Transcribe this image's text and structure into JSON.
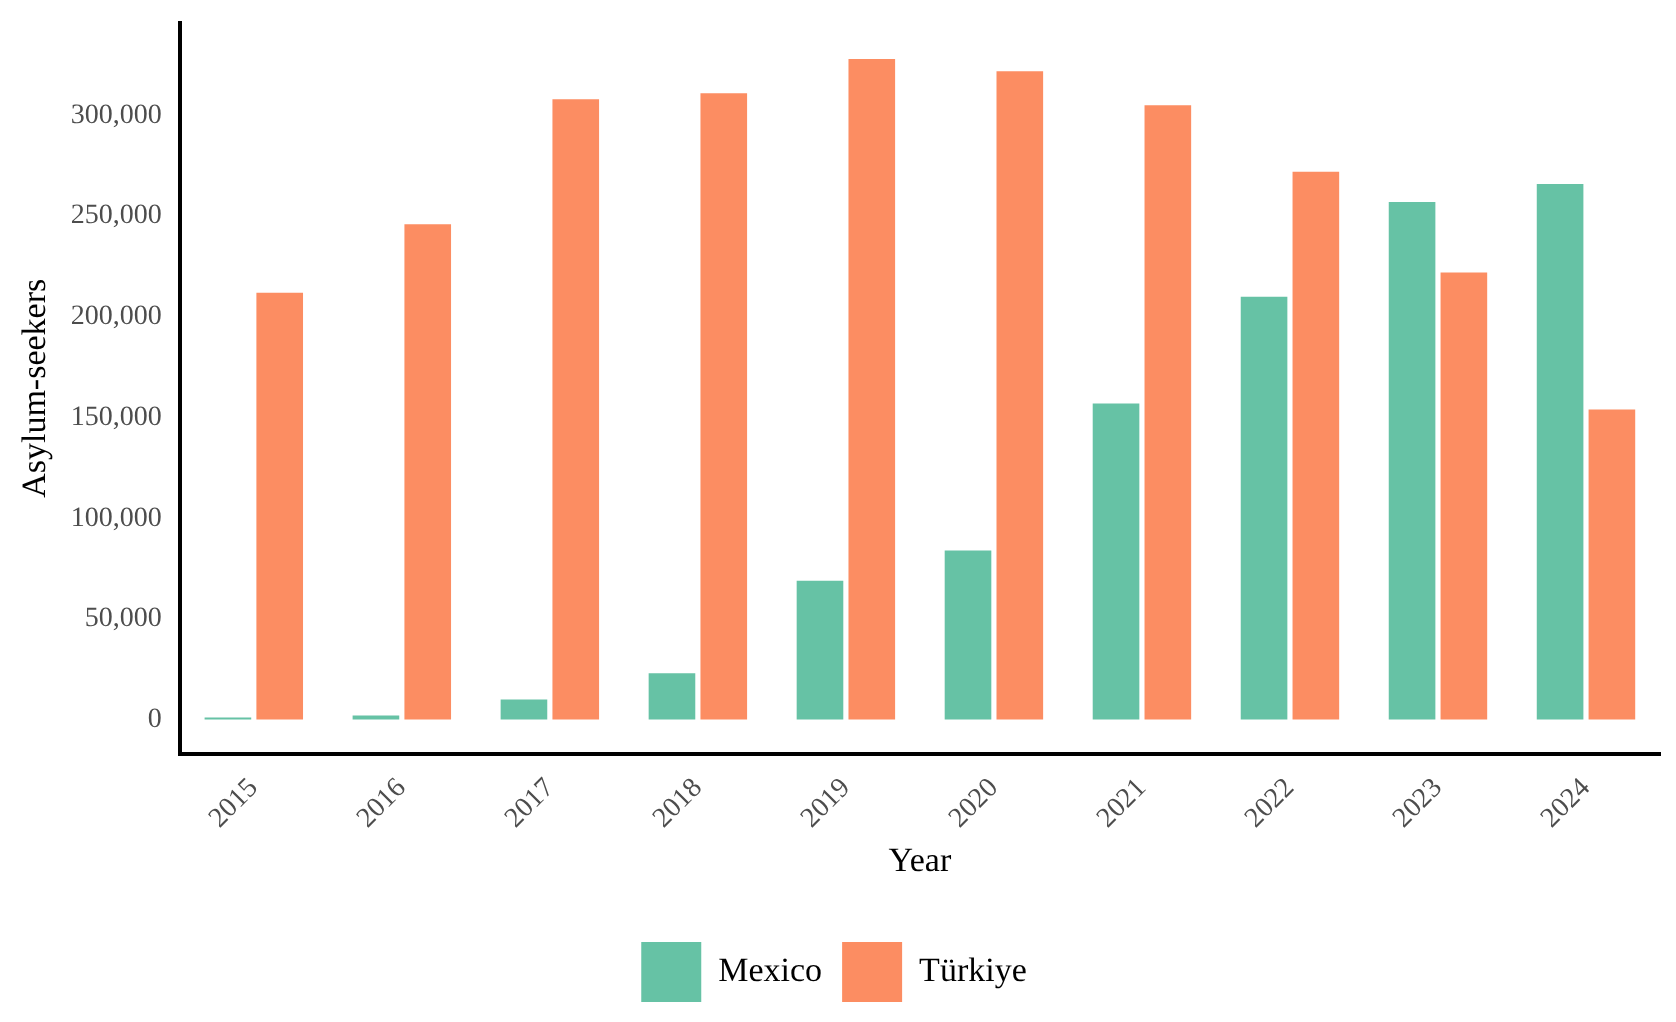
{
  "chart_data": {
    "type": "bar",
    "xlabel": "Year",
    "ylabel": "Asylum-seekers",
    "categories": [
      "2015",
      "2016",
      "2017",
      "2018",
      "2019",
      "2020",
      "2021",
      "2022",
      "2023",
      "2024"
    ],
    "series": [
      {
        "name": "Mexico",
        "color": "#66c2a5",
        "values": [
          1000,
          2000,
          10000,
          23000,
          69000,
          84000,
          157000,
          210000,
          257000,
          266000
        ]
      },
      {
        "name": "Türkiye",
        "color": "#fc8d62",
        "values": [
          212000,
          246000,
          308000,
          311000,
          328000,
          322000,
          305000,
          272000,
          222000,
          154000
        ]
      }
    ],
    "ylim": [
      -17000,
      346000
    ],
    "yticks": [
      0,
      {
        "value": 50000,
        "label": "50,000"
      },
      {
        "value": 100000,
        "label": "100,000"
      },
      {
        "value": 150000,
        "label": "150,000"
      },
      {
        "value": 200000,
        "label": "200,000"
      },
      {
        "value": 250000,
        "label": "250,000"
      },
      {
        "value": 300000,
        "label": "300,000"
      }
    ],
    "grid": false,
    "legend": "bottom"
  }
}
